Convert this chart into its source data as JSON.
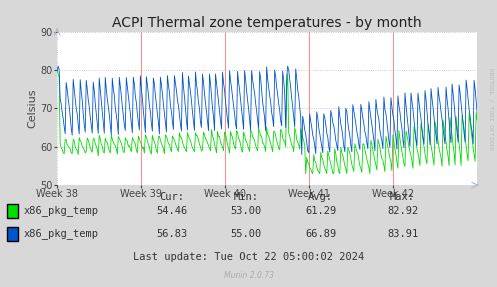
{
  "title": "ACPI Thermal zone temperatures - by month",
  "ylabel": "Celsius",
  "ylim": [
    50,
    90
  ],
  "yticks": [
    50,
    60,
    70,
    80,
    90
  ],
  "xtick_labels": [
    "Week 38",
    "Week 39",
    "Week 40",
    "Week 41",
    "Week 42"
  ],
  "bg_color": "#d8d8d8",
  "plot_bg_color": "#ffffff",
  "grid_color": "#bbbbcc",
  "vline_color": "#ff8888",
  "line1_color": "#00dd00",
  "line2_color": "#0055cc",
  "legend1_label": "x86_pkg_temp",
  "legend2_label": "x86_pkg_temp",
  "cur1": "54.46",
  "min1": "53.00",
  "avg1": "61.29",
  "max1": "82.92",
  "cur2": "56.83",
  "min2": "55.00",
  "avg2": "66.89",
  "max2": "83.91",
  "last_update": "Last update: Tue Oct 22 05:00:02 2024",
  "munin_version": "Munin 2.0.73",
  "right_label": "RRDTOOL / TOBI OETIKER",
  "title_fontsize": 10,
  "axis_fontsize": 7,
  "legend_fontsize": 7.5
}
